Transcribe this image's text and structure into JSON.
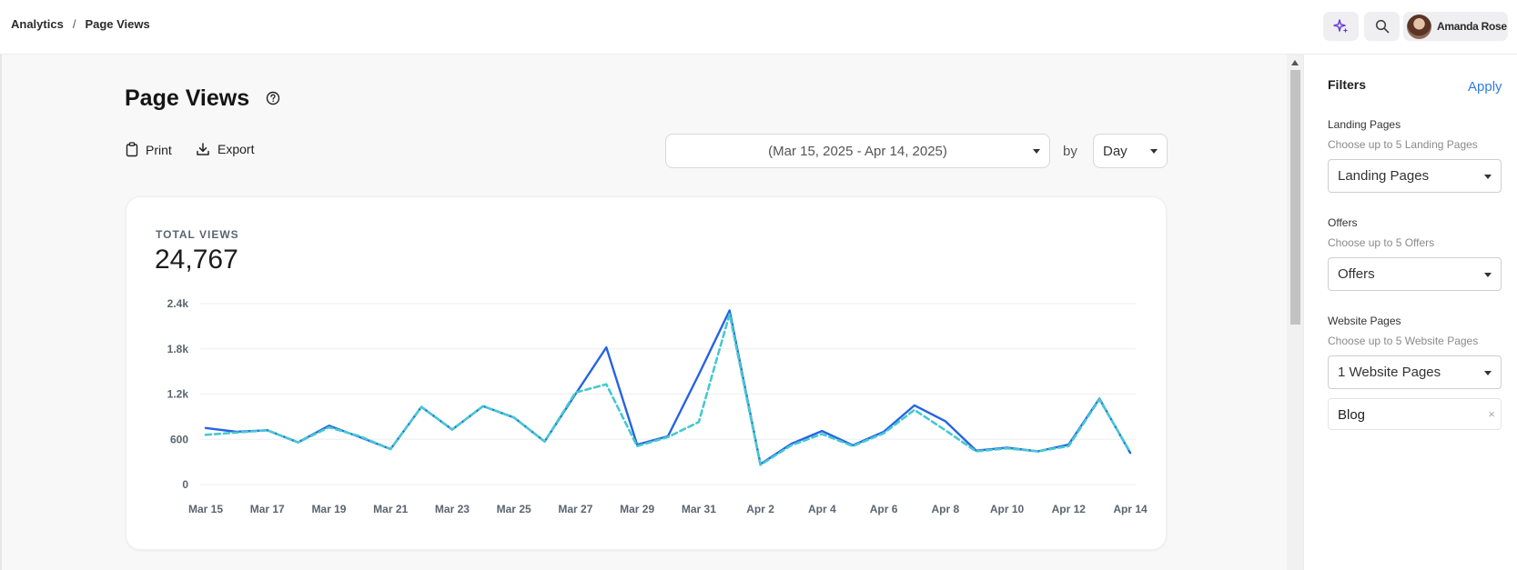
{
  "breadcrumb": {
    "items": [
      "Analytics",
      "Page Views"
    ],
    "separator": "/"
  },
  "header": {
    "user_name": "Amanda Rose",
    "icons": [
      "sparkle-icon",
      "search-icon"
    ]
  },
  "page": {
    "title": "Page Views"
  },
  "actions": {
    "print_label": "Print",
    "export_label": "Export"
  },
  "controls": {
    "date_range": "(Mar 15, 2025 - Apr 14, 2025)",
    "by_label": "by",
    "granularity": "Day"
  },
  "summary": {
    "label": "TOTAL VIEWS",
    "value": "24,767"
  },
  "chart_data": {
    "type": "line",
    "x": [
      "Mar 15",
      "Mar 16",
      "Mar 17",
      "Mar 18",
      "Mar 19",
      "Mar 20",
      "Mar 21",
      "Mar 22",
      "Mar 23",
      "Mar 24",
      "Mar 25",
      "Mar 26",
      "Mar 27",
      "Mar 28",
      "Mar 29",
      "Mar 30",
      "Mar 31",
      "Apr 1",
      "Apr 2",
      "Apr 3",
      "Apr 4",
      "Apr 5",
      "Apr 6",
      "Apr 7",
      "Apr 8",
      "Apr 9",
      "Apr 10",
      "Apr 11",
      "Apr 12",
      "Apr 13",
      "Apr 14"
    ],
    "tick_labels": [
      "Mar 15",
      "Mar 17",
      "Mar 19",
      "Mar 21",
      "Mar 23",
      "Mar 25",
      "Mar 27",
      "Mar 29",
      "Mar 31",
      "Apr 2",
      "Apr 4",
      "Apr 6",
      "Apr 8",
      "Apr 10",
      "Apr 12",
      "Apr 14"
    ],
    "series": [
      {
        "values": [
          750,
          700,
          720,
          560,
          780,
          630,
          470,
          1030,
          730,
          1040,
          890,
          570,
          1200,
          1820,
          530,
          640,
          1460,
          2310,
          270,
          540,
          710,
          520,
          700,
          1050,
          840,
          450,
          490,
          440,
          530,
          1140,
          420
        ],
        "color": "#2563e3",
        "style": "solid"
      },
      {
        "values": [
          660,
          690,
          720,
          560,
          760,
          640,
          470,
          1030,
          730,
          1040,
          890,
          570,
          1220,
          1330,
          510,
          630,
          830,
          2260,
          260,
          520,
          670,
          510,
          680,
          990,
          720,
          440,
          480,
          440,
          510,
          1130,
          430
        ],
        "color": "#45c9d0",
        "style": "dashed"
      }
    ],
    "y_ticks": [
      "0",
      "600",
      "1.2k",
      "1.8k",
      "2.4k"
    ],
    "ylim": [
      0,
      2400
    ],
    "grid": true
  },
  "filters": {
    "title": "Filters",
    "apply_label": "Apply",
    "groups": [
      {
        "label": "Landing Pages",
        "hint": "Choose up to 5 Landing Pages",
        "value": "Landing Pages"
      },
      {
        "label": "Offers",
        "hint": "Choose up to 5 Offers",
        "value": "Offers"
      },
      {
        "label": "Website Pages",
        "hint": "Choose up to 5 Website Pages",
        "value": "1 Website Pages"
      }
    ],
    "selected_chip": "Blog",
    "chip_remove": "×"
  }
}
